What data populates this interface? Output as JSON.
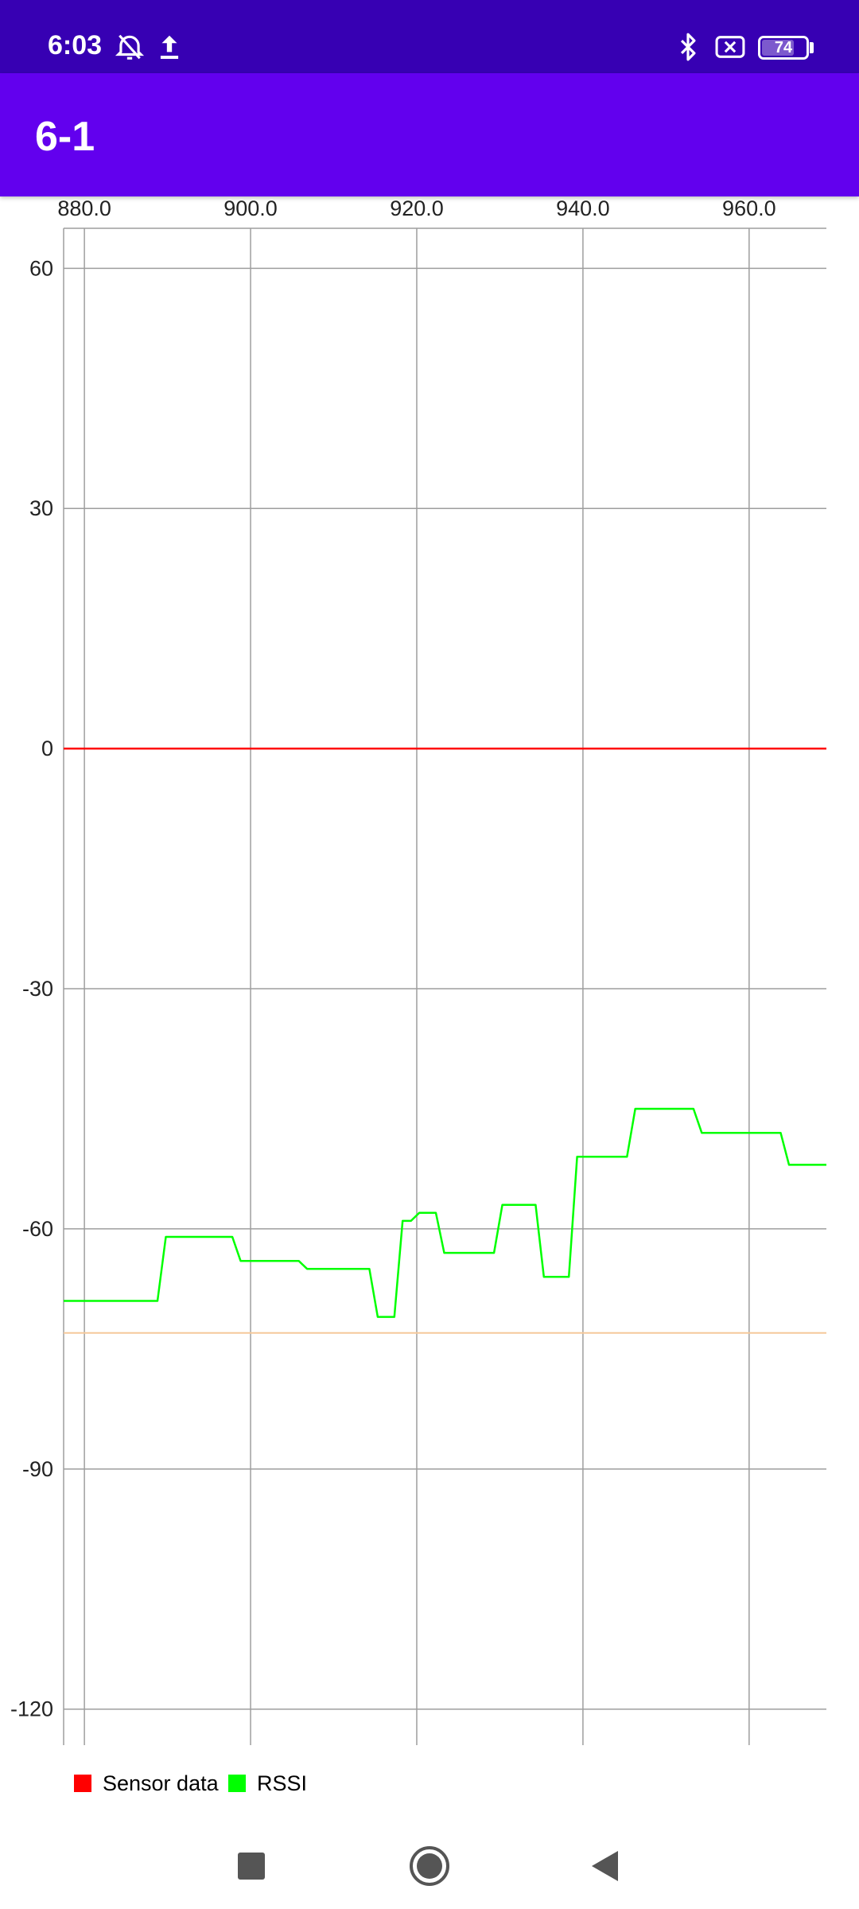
{
  "status_bar": {
    "time": "6:03",
    "battery_level": "74",
    "icons": [
      "alarm-off-icon",
      "upload-icon",
      "bluetooth-icon",
      "sim-blocked-icon",
      "battery-icon"
    ]
  },
  "app_bar": {
    "title": "6-1"
  },
  "chart_data": {
    "type": "line",
    "xlim": [
      877.5,
      969.3
    ],
    "ylim": [
      -124.5,
      65
    ],
    "x_ticks": [
      880,
      900,
      920,
      940,
      960
    ],
    "x_tick_labels": [
      "880.0",
      "900.0",
      "920.0",
      "940.0",
      "960.0"
    ],
    "y_ticks": [
      60,
      30,
      0,
      -30,
      -60,
      -90,
      -120
    ],
    "y_tick_labels": [
      "60",
      "30",
      "0",
      "-30",
      "-60",
      "-90",
      "-120"
    ],
    "grid": true,
    "legend_position": "bottom-left",
    "reference_line": {
      "y": -73,
      "color": "#F5C99A"
    },
    "series": [
      {
        "name": "Sensor data",
        "color": "#FF0000",
        "points": [
          [
            877.5,
            0
          ],
          [
            969.3,
            0
          ]
        ]
      },
      {
        "name": "RSSI",
        "color": "#00FF00",
        "points": [
          [
            877.5,
            -69
          ],
          [
            888.8,
            -69
          ],
          [
            889.8,
            -61
          ],
          [
            897.8,
            -61
          ],
          [
            898.8,
            -64
          ],
          [
            905.8,
            -64
          ],
          [
            906.8,
            -65
          ],
          [
            914.3,
            -65
          ],
          [
            915.3,
            -71
          ],
          [
            917.3,
            -71
          ],
          [
            918.3,
            -59
          ],
          [
            919.3,
            -59
          ],
          [
            920.3,
            -58
          ],
          [
            922.3,
            -58
          ],
          [
            923.3,
            -63
          ],
          [
            929.3,
            -63
          ],
          [
            930.3,
            -57
          ],
          [
            934.3,
            -57
          ],
          [
            935.3,
            -66
          ],
          [
            938.3,
            -66
          ],
          [
            939.3,
            -51
          ],
          [
            945.3,
            -51
          ],
          [
            946.3,
            -45
          ],
          [
            953.3,
            -45
          ],
          [
            954.3,
            -48
          ],
          [
            963.8,
            -48
          ],
          [
            964.8,
            -52
          ],
          [
            969.3,
            -52
          ]
        ]
      }
    ]
  },
  "legend": {
    "items": [
      {
        "label": "Sensor data",
        "color": "#FF0000"
      },
      {
        "label": "RSSI",
        "color": "#00FF00"
      }
    ]
  }
}
